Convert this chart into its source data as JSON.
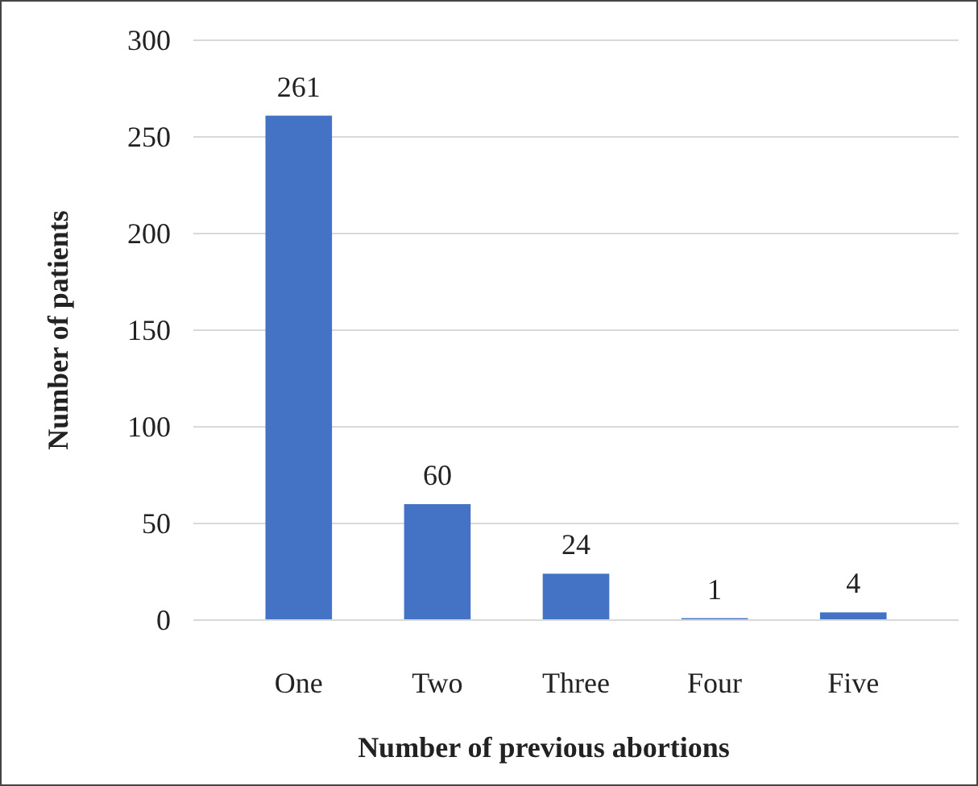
{
  "chart_data": {
    "type": "bar",
    "xlabel": "Number of previous abortions",
    "ylabel": "Number of patients",
    "categories": [
      "One",
      "Two",
      "Three",
      "Four",
      "Five"
    ],
    "values": [
      261,
      60,
      24,
      1,
      4
    ],
    "color": "#4472c4",
    "ylim": [
      0,
      300
    ],
    "yticks": [
      0,
      50,
      100,
      150,
      200,
      250,
      300
    ],
    "grid": "y",
    "data_labels": true
  }
}
